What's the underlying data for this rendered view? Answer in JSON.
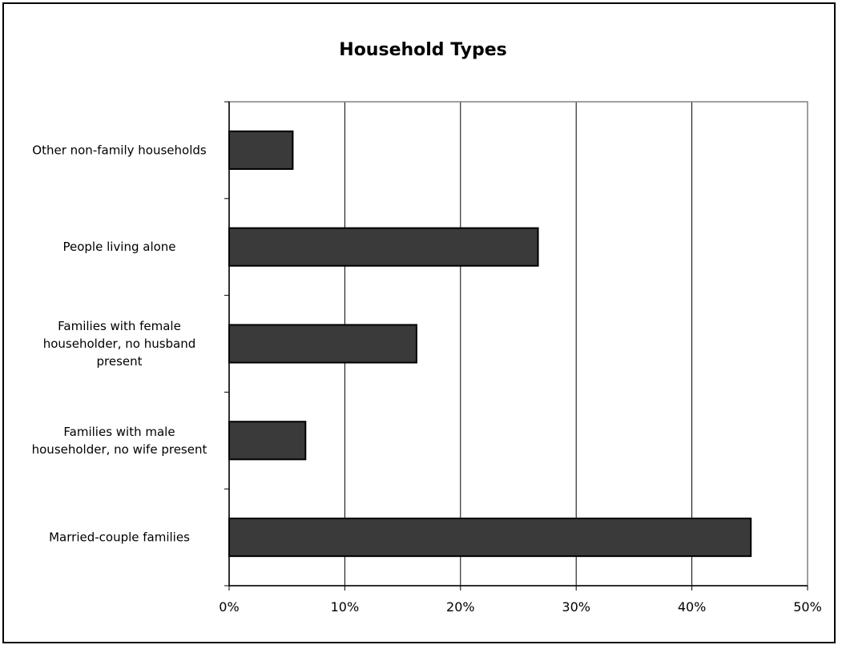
{
  "chart_data": {
    "type": "bar",
    "orientation": "horizontal",
    "title": "Household Types",
    "xlabel": "",
    "ylabel": "",
    "xlim": [
      0,
      50
    ],
    "x_ticks": [
      "0%",
      "10%",
      "20%",
      "30%",
      "40%",
      "50%"
    ],
    "grid": true,
    "legend": "none",
    "categories": [
      "Married-couple families",
      "Families with male householder, no wife present",
      "Families with female householder, no husband present",
      "People living alone",
      "Other non-family households"
    ],
    "category_lines": [
      [
        "Married-couple families"
      ],
      [
        "Families with male",
        "householder, no wife present"
      ],
      [
        "Families with female",
        "householder, no husband",
        "present"
      ],
      [
        "People living alone"
      ],
      [
        "Other non-family households"
      ]
    ],
    "values": [
      45.1,
      6.6,
      16.2,
      26.7,
      5.5
    ],
    "bar_color": "#3a3a3a"
  }
}
